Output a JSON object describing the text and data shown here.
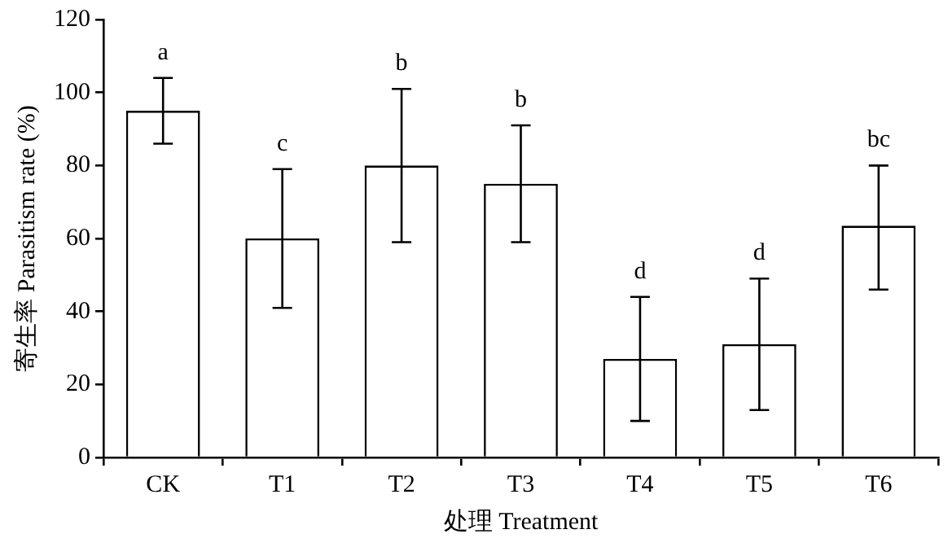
{
  "chart_data": {
    "type": "bar",
    "xlabel": "处理 Treatment",
    "ylabel": "寄生率 Parasitism rate (%)",
    "categories": [
      "CK",
      "T1",
      "T2",
      "T3",
      "T4",
      "T5",
      "T6"
    ],
    "values": [
      95,
      60,
      80,
      75,
      27,
      31,
      63.5
    ],
    "errors": [
      [
        86,
        104
      ],
      [
        41,
        79
      ],
      [
        59,
        101
      ],
      [
        59,
        91
      ],
      [
        10,
        44
      ],
      [
        13,
        49
      ],
      [
        46,
        80
      ]
    ],
    "color": "#ffffff",
    "ylim": [
      0,
      120
    ],
    "yticks": [
      0,
      20,
      40,
      60,
      80,
      100,
      120
    ],
    "grid": false,
    "legend": false,
    "annotations": [
      {
        "text": "a",
        "x": "CK",
        "y": 104
      },
      {
        "text": "c",
        "x": "T1",
        "y": 79
      },
      {
        "text": "b",
        "x": "T2",
        "y": 101
      },
      {
        "text": "b",
        "x": "T3",
        "y": 91
      },
      {
        "text": "d",
        "x": "T4",
        "y": 44
      },
      {
        "text": "d",
        "x": "T5",
        "y": 49
      },
      {
        "text": "bc",
        "x": "T6",
        "y": 80
      }
    ]
  }
}
